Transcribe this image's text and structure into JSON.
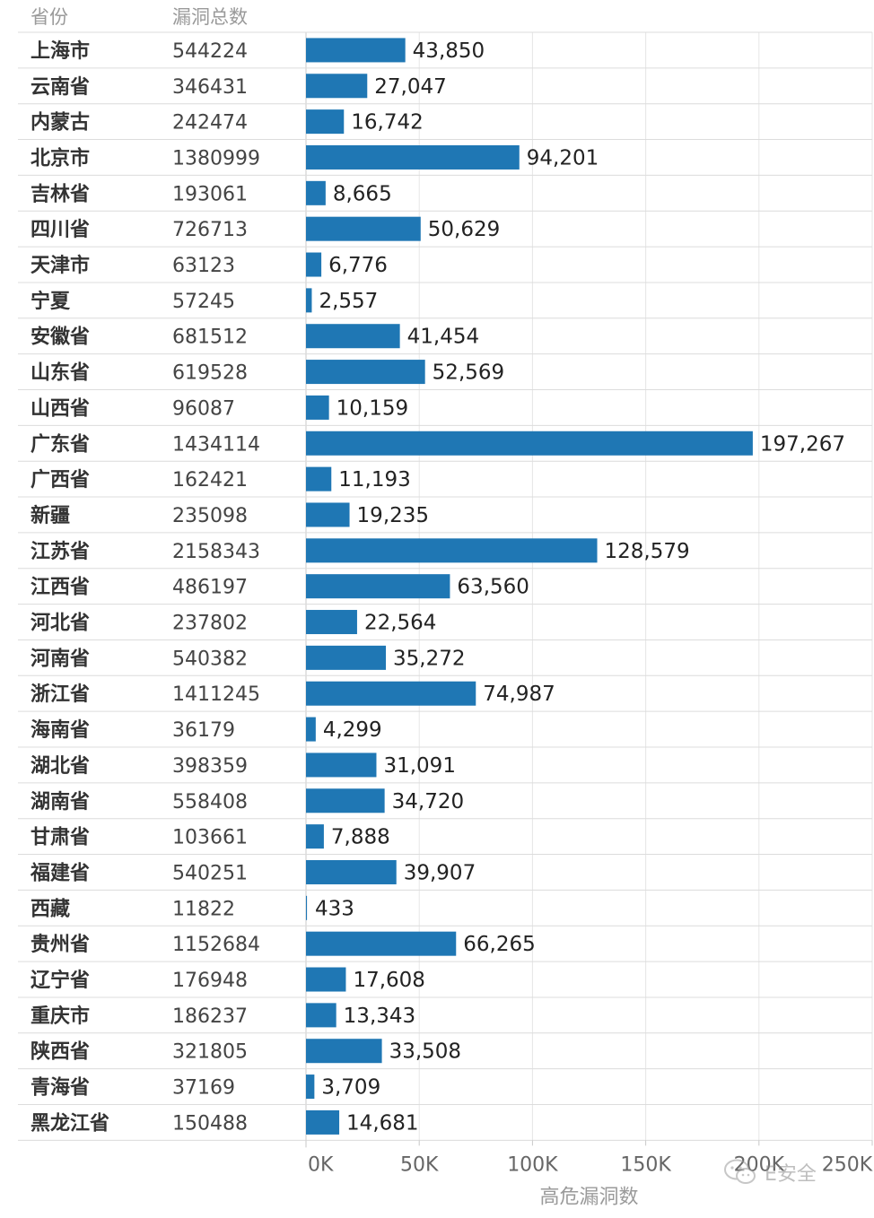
{
  "chart_data": {
    "type": "table",
    "columns": [
      "省份",
      "漏洞总数",
      "高危漏洞数"
    ],
    "xlabel": "高危漏洞数",
    "xlim": [
      0,
      250000
    ],
    "xticks": [
      0,
      50000,
      100000,
      150000,
      200000,
      250000
    ],
    "xtick_labels": [
      "0K",
      "50K",
      "100K",
      "150K",
      "200K",
      "250K"
    ],
    "bar_color": "#1f77b4",
    "rows": [
      {
        "province": "上海市",
        "total": "544224",
        "high": 43850,
        "high_label": "43,850"
      },
      {
        "province": "云南省",
        "total": "346431",
        "high": 27047,
        "high_label": "27,047"
      },
      {
        "province": "内蒙古",
        "total": "242474",
        "high": 16742,
        "high_label": "16,742"
      },
      {
        "province": "北京市",
        "total": "1380999",
        "high": 94201,
        "high_label": "94,201"
      },
      {
        "province": "吉林省",
        "total": "193061",
        "high": 8665,
        "high_label": "8,665"
      },
      {
        "province": "四川省",
        "total": "726713",
        "high": 50629,
        "high_label": "50,629"
      },
      {
        "province": "天津市",
        "total": "63123",
        "high": 6776,
        "high_label": "6,776"
      },
      {
        "province": "宁夏",
        "total": "57245",
        "high": 2557,
        "high_label": "2,557"
      },
      {
        "province": "安徽省",
        "total": "681512",
        "high": 41454,
        "high_label": "41,454"
      },
      {
        "province": "山东省",
        "total": "619528",
        "high": 52569,
        "high_label": "52,569"
      },
      {
        "province": "山西省",
        "total": "96087",
        "high": 10159,
        "high_label": "10,159"
      },
      {
        "province": "广东省",
        "total": "1434114",
        "high": 197267,
        "high_label": "197,267"
      },
      {
        "province": "广西省",
        "total": "162421",
        "high": 11193,
        "high_label": "11,193"
      },
      {
        "province": "新疆",
        "total": "235098",
        "high": 19235,
        "high_label": "19,235"
      },
      {
        "province": "江苏省",
        "total": "2158343",
        "high": 128579,
        "high_label": "128,579"
      },
      {
        "province": "江西省",
        "total": "486197",
        "high": 63560,
        "high_label": "63,560"
      },
      {
        "province": "河北省",
        "total": "237802",
        "high": 22564,
        "high_label": "22,564"
      },
      {
        "province": "河南省",
        "total": "540382",
        "high": 35272,
        "high_label": "35,272"
      },
      {
        "province": "浙江省",
        "total": "1411245",
        "high": 74987,
        "high_label": "74,987"
      },
      {
        "province": "海南省",
        "total": "36179",
        "high": 4299,
        "high_label": "4,299"
      },
      {
        "province": "湖北省",
        "total": "398359",
        "high": 31091,
        "high_label": "31,091"
      },
      {
        "province": "湖南省",
        "total": "558408",
        "high": 34720,
        "high_label": "34,720"
      },
      {
        "province": "甘肃省",
        "total": "103661",
        "high": 7888,
        "high_label": "7,888"
      },
      {
        "province": "福建省",
        "total": "540251",
        "high": 39907,
        "high_label": "39,907"
      },
      {
        "province": "西藏",
        "total": "11822",
        "high": 433,
        "high_label": "433"
      },
      {
        "province": "贵州省",
        "total": "1152684",
        "high": 66265,
        "high_label": "66,265"
      },
      {
        "province": "辽宁省",
        "total": "176948",
        "high": 17608,
        "high_label": "17,608"
      },
      {
        "province": "重庆市",
        "total": "186237",
        "high": 13343,
        "high_label": "13,343"
      },
      {
        "province": "陕西省",
        "total": "321805",
        "high": 33508,
        "high_label": "33,508"
      },
      {
        "province": "青海省",
        "total": "37169",
        "high": 3709,
        "high_label": "3,709"
      },
      {
        "province": "黑龙江省",
        "total": "150488",
        "high": 14681,
        "high_label": "14,681"
      }
    ]
  },
  "watermark": {
    "text": "E安全",
    "icon": "wechat-icon"
  }
}
